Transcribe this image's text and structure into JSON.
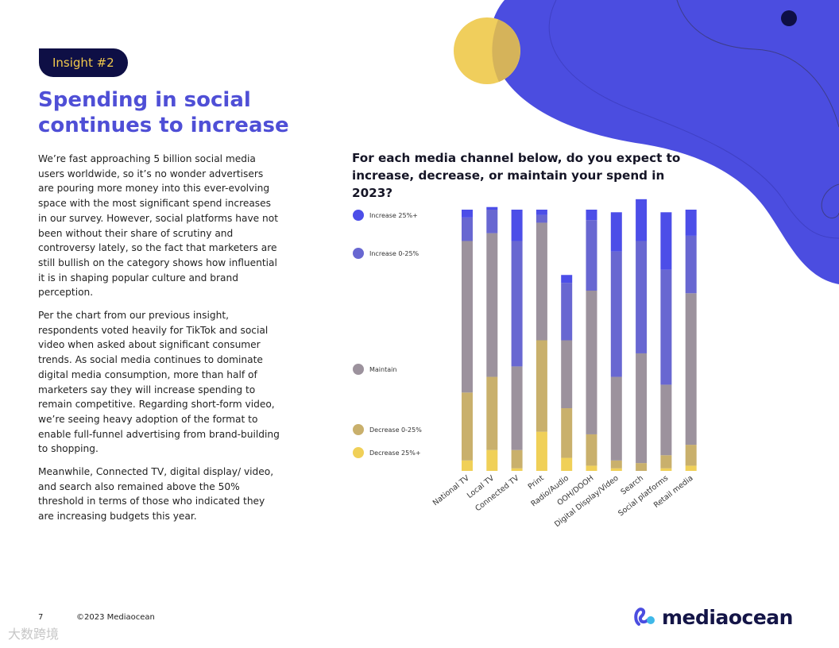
{
  "badge": "Insight #2",
  "title": [
    "Spending in social",
    "continues to increase"
  ],
  "paragraphs": [
    "We’re fast approaching 5 billion social media users worldwide, so it’s no wonder advertisers are pouring more money into this ever-evolving space with the most significant spend increases in our survey. However, social platforms have not been without their share of scrutiny and controversy lately, so the fact that marketers are still bullish on the category shows how influential it is in shaping popular culture and brand perception.",
    "Per the chart from our previous insight, respondents voted heavily for TikTok and social video when asked about significant consumer trends. As social media continues to dominate digital media consumption, more than half of marketers say they will increase spending to remain competitive. Regarding short-form video, we’re seeing heavy adoption of the format to enable full-funnel advertising from brand-building to shopping.",
    "Meanwhile, Connected TV, digital display/ video, and search also remained above the 50% threshold in terms of those who indicated they are increasing budgets this year."
  ],
  "footer": {
    "page": "7",
    "copyright": "©2023 Mediaocean"
  },
  "logo_text": "mediaocean",
  "watermark": "大数跨境",
  "colors": {
    "brand_blue": "#4f4fd6",
    "navy": "#0e0f45",
    "yellow": "#f2c94c",
    "increase_25_plus": "#4c4ee8",
    "increase_0_25": "#6867d1",
    "maintain": "#9c929d",
    "decrease_0_25": "#c9b06c",
    "decrease_25_plus": "#f0d058"
  },
  "chart_data": {
    "type": "bar",
    "stacked": true,
    "title": "For each media channel below, do you expect to increase, decrease, or maintain your spend in 2023?",
    "categories": [
      "National TV",
      "Local TV",
      "Connected TV",
      "Print",
      "Radio/Audio",
      "OOH/DOOH",
      "Digital Display/Video",
      "Search",
      "Social platforms",
      "Retail media"
    ],
    "ylim": [
      0,
      100
    ],
    "legend_position": "left",
    "series": [
      {
        "name": "Decrease 25%+",
        "key": "decrease_25_plus",
        "values": [
          4,
          8,
          1,
          15,
          5,
          2,
          1,
          0,
          1,
          2
        ]
      },
      {
        "name": "Decrease 0-25%",
        "key": "decrease_0_25",
        "values": [
          26,
          28,
          7,
          35,
          19,
          12,
          3,
          3,
          5,
          8
        ]
      },
      {
        "name": "Maintain",
        "key": "maintain",
        "values": [
          58,
          55,
          32,
          45,
          26,
          55,
          32,
          42,
          27,
          58
        ]
      },
      {
        "name": "Increase 0-25%",
        "key": "increase_0_25",
        "values": [
          9,
          9,
          48,
          3,
          22,
          27,
          48,
          43,
          44,
          22
        ]
      },
      {
        "name": "Increase 25%+",
        "key": "increase_25_plus",
        "values": [
          3,
          1,
          12,
          2,
          3,
          4,
          15,
          16,
          22,
          10
        ]
      }
    ],
    "legend_order": [
      "Increase 25%+",
      "Increase 0-25%",
      "Maintain",
      "Decrease 0-25%",
      "Decrease 25%+"
    ]
  }
}
